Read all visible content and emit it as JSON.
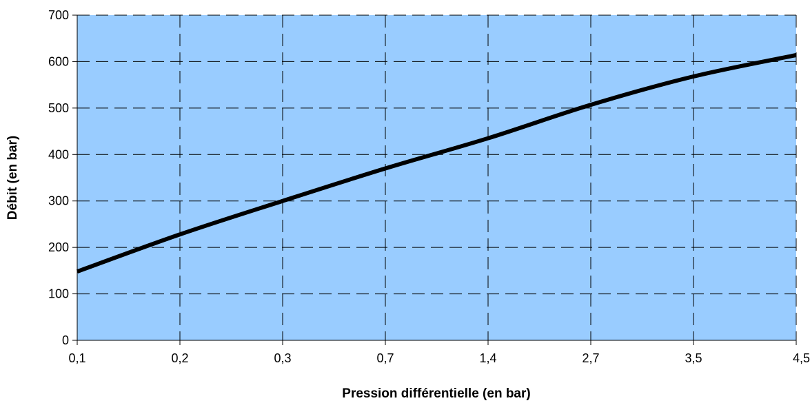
{
  "chart_data": {
    "type": "line",
    "title": "",
    "xlabel": "Pression différentielle (en bar)",
    "ylabel": "Débit (en bar)",
    "x_axis_type": "category",
    "categories": [
      "0,1",
      "0,2",
      "0,3",
      "0,7",
      "1,4",
      "2,7",
      "3,5",
      "4,5"
    ],
    "series": [
      {
        "values": [
          148,
          228,
          300,
          370,
          435,
          507,
          568,
          614
        ],
        "color": "#000000"
      }
    ],
    "ylim": [
      0,
      700
    ],
    "yticks": [
      0,
      100,
      200,
      300,
      400,
      500,
      600,
      700
    ],
    "grid": true,
    "grid_style": "dashed",
    "legend": "none",
    "plot_background": "#99CCFF"
  }
}
